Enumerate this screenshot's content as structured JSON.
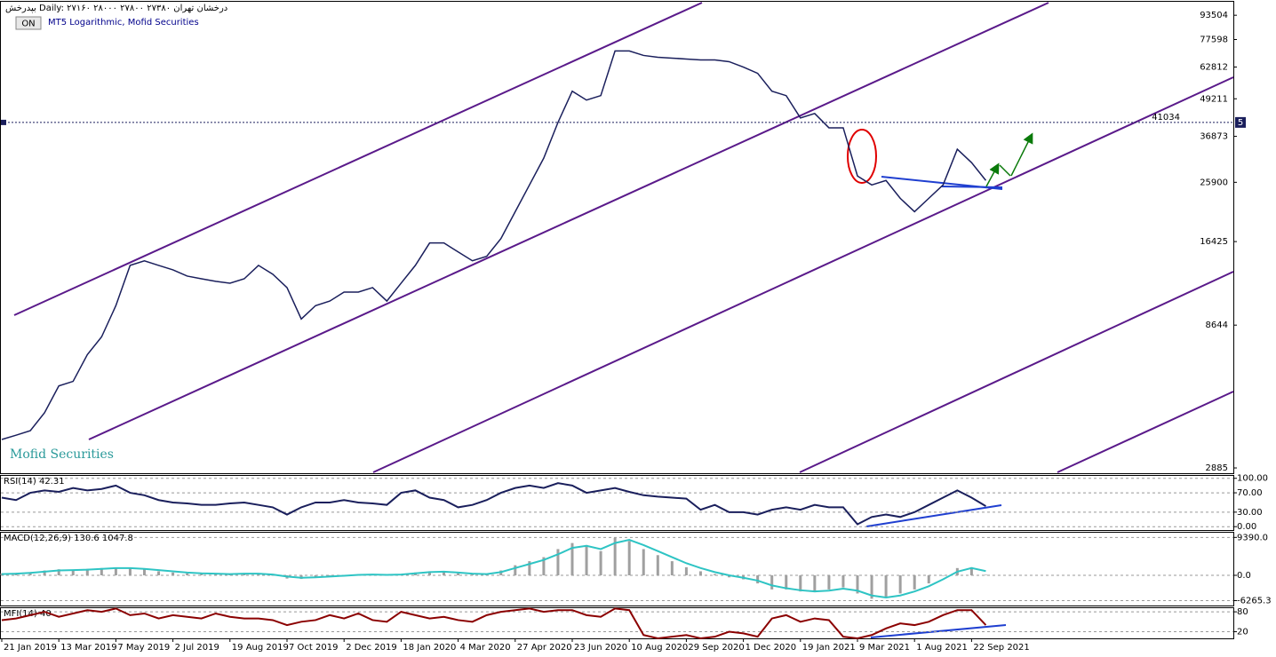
{
  "header": {
    "symbol_line": "بپدرخش Daily: ۲۷۱۶۰ ۲۸۰۰۰ ۲۷۸۰۰ ۲۷۳۸۰ درخشان تهران",
    "button": "ON",
    "description": "MT5 Logarithmic, Mofid Securities",
    "watermark": "Mofid Securities"
  },
  "chart_data": [
    {
      "type": "line",
      "log_scale": true,
      "color": "#1a1f5c",
      "categories": [
        "21 Jan 2019",
        null,
        null,
        null,
        "13 Mar 2019",
        null,
        null,
        null,
        "7 May 2019",
        null,
        null,
        null,
        "2 Jul 2019",
        null,
        null,
        null,
        "19 Aug 2019",
        null,
        null,
        null,
        "7 Oct 2019",
        null,
        null,
        null,
        "2 Dec 2019",
        null,
        null,
        null,
        "18 Jan 2020",
        null,
        null,
        null,
        "4 Mar 2020",
        null,
        null,
        null,
        "27 Apr 2020",
        null,
        null,
        null,
        "23 Jun 2020",
        null,
        null,
        null,
        "10 Aug 2020",
        null,
        null,
        null,
        "29 Sep 2020",
        null,
        null,
        null,
        "1 Dec 2020",
        null,
        null,
        null,
        "19 Jan 2021",
        null,
        null,
        null,
        "9 Mar 2021",
        null,
        null,
        null,
        "1 Aug 2021",
        null,
        null,
        null,
        "22 Sep 2021",
        null
      ],
      "values": [
        3590,
        3710,
        3840,
        4410,
        5420,
        5610,
        6890,
        7900,
        10040,
        13680,
        14170,
        13680,
        13220,
        12600,
        12340,
        12100,
        11930,
        12340,
        13680,
        12780,
        11530,
        9060,
        10040,
        10400,
        11140,
        11140,
        11530,
        10400,
        11930,
        13680,
        16250,
        16250,
        15170,
        14170,
        14660,
        16810,
        20660,
        25380,
        31180,
        41040,
        52170,
        48720,
        50420,
        71070,
        71070,
        68660,
        67720,
        67260,
        66800,
        66340,
        66340,
        65440,
        62800,
        59850,
        52170,
        50420,
        42470,
        43950,
        39370,
        39370,
        27180,
        25380,
        26270,
        22900,
        20660,
        22900,
        25380,
        33400,
        30130,
        26270
      ],
      "ylim": [
        2770,
        103700
      ],
      "yticks": [
        2885,
        8644,
        16425,
        25900,
        36873,
        49211,
        62812,
        77598,
        93504
      ],
      "price_line": 41034,
      "price_marker": "5"
    },
    {
      "type": "line",
      "title": "RSI(14) 42.31",
      "color": "#1a1f5c",
      "values": [
        60,
        55,
        70,
        75,
        72,
        80,
        75,
        78,
        85,
        70,
        65,
        55,
        50,
        48,
        45,
        45,
        48,
        50,
        45,
        40,
        25,
        40,
        50,
        50,
        55,
        50,
        48,
        45,
        70,
        75,
        60,
        55,
        40,
        45,
        55,
        70,
        80,
        85,
        80,
        90,
        85,
        70,
        75,
        80,
        72,
        65,
        62,
        60,
        58,
        35,
        45,
        30,
        30,
        25,
        35,
        40,
        35,
        45,
        40,
        40,
        5,
        20,
        25,
        20,
        30,
        45,
        60,
        75,
        60,
        42.31
      ],
      "ylim": [
        -7,
        105
      ],
      "yticks": [
        {
          "value": 100,
          "label": "100.00"
        },
        {
          "value": 70,
          "label": "70.00"
        },
        {
          "value": 30,
          "label": "30.00"
        },
        {
          "value": 0,
          "label": "0.00"
        }
      ],
      "grid": true
    },
    {
      "type": "macd",
      "title": "MACD(12,26,9) 130.6 1047.8",
      "color": "#a0a0a0",
      "signal_color": "#2ec4c4",
      "values": [
        500,
        600,
        800,
        1200,
        1500,
        1400,
        1600,
        1800,
        1900,
        1700,
        1500,
        1000,
        700,
        500,
        400,
        300,
        300,
        500,
        400,
        0,
        -800,
        -900,
        -400,
        -200,
        0,
        200,
        200,
        0,
        300,
        700,
        1000,
        900,
        500,
        200,
        300,
        1200,
        2500,
        3500,
        4500,
        6500,
        8000,
        7500,
        6000,
        9300,
        8500,
        6500,
        5000,
        3500,
        2000,
        1000,
        300,
        -500,
        -1000,
        -2000,
        -3500,
        -3500,
        -4000,
        -4200,
        -3500,
        -3000,
        -4500,
        -5800,
        -5500,
        -4500,
        -3500,
        -2000,
        0,
        1800,
        2000,
        130.6
      ],
      "signal_values": [
        300,
        400,
        600,
        900,
        1200,
        1300,
        1400,
        1600,
        1800,
        1800,
        1600,
        1300,
        1000,
        700,
        500,
        400,
        300,
        400,
        400,
        200,
        -300,
        -600,
        -500,
        -300,
        -100,
        100,
        200,
        100,
        200,
        500,
        800,
        900,
        700,
        400,
        300,
        800,
        1800,
        2800,
        3800,
        5200,
        6800,
        7300,
        6500,
        8000,
        8800,
        7500,
        6000,
        4500,
        3000,
        1800,
        800,
        0,
        -600,
        -1300,
        -2500,
        -3200,
        -3700,
        -4000,
        -3800,
        -3300,
        -3800,
        -5000,
        -5500,
        -5000,
        -4000,
        -2700,
        -1000,
        900,
        1800,
        1047.8
      ],
      "ylim": [
        -7480,
        10560
      ],
      "yticks": [
        {
          "value": 9390,
          "label": "9390.0"
        },
        {
          "value": 0,
          "label": "0.0"
        },
        -6265.3
      ],
      "grid": true
    },
    {
      "type": "line",
      "title": "MFI(14) 40",
      "color": "#8b0000",
      "values": [
        55,
        60,
        70,
        80,
        65,
        75,
        85,
        80,
        90,
        70,
        75,
        60,
        70,
        65,
        60,
        75,
        65,
        60,
        60,
        55,
        40,
        50,
        55,
        70,
        60,
        75,
        55,
        50,
        80,
        70,
        60,
        65,
        55,
        50,
        70,
        80,
        85,
        90,
        80,
        85,
        85,
        70,
        65,
        90,
        85,
        10,
        0,
        5,
        10,
        0,
        5,
        20,
        15,
        5,
        60,
        70,
        50,
        60,
        55,
        5,
        0,
        10,
        30,
        45,
        40,
        50,
        70,
        85,
        85,
        40
      ],
      "ylim": [
        0,
        91
      ],
      "yticks": [
        80,
        20
      ],
      "grid": true
    }
  ]
}
